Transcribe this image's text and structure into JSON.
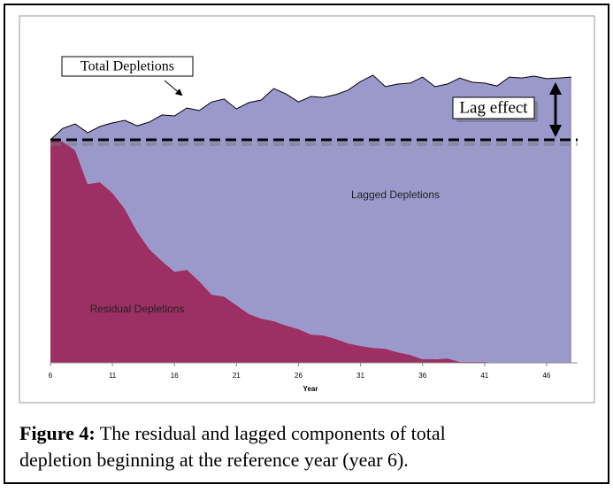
{
  "chart_data": {
    "type": "stacked_area",
    "x_label": "Year",
    "x": [
      6,
      7,
      8,
      9,
      10,
      11,
      12,
      13,
      14,
      15,
      16,
      17,
      18,
      19,
      20,
      21,
      22,
      23,
      24,
      25,
      26,
      27,
      28,
      29,
      30,
      31,
      32,
      33,
      34,
      35,
      36,
      37,
      38,
      39,
      40,
      41,
      42,
      43,
      44,
      45,
      46,
      47,
      48
    ],
    "series": [
      {
        "name": "Residual Depletions",
        "color": "#9c2f63",
        "values": [
          70,
          69.4,
          66.7,
          56.1,
          56.7,
          53.3,
          48.3,
          41.1,
          35.6,
          31.9,
          28.6,
          29.2,
          25.6,
          21.4,
          20.8,
          18.1,
          15.3,
          13.9,
          13.1,
          11.7,
          10.6,
          8.9,
          8.6,
          7.5,
          6.1,
          5.3,
          4.7,
          4.4,
          3.3,
          2.5,
          1.1,
          1.1,
          1.4,
          0.3,
          0.3,
          0.3,
          0,
          0,
          0,
          0,
          0,
          0,
          0
        ]
      },
      {
        "name": "Lagged Depletions",
        "color": "#9b99cc",
        "values": [
          0,
          4.2,
          8.3,
          16.1,
          17.5,
          22,
          27.8,
          33.3,
          40,
          45.9,
          48.9,
          50.8,
          53.6,
          60.5,
          62,
          61.6,
          66.4,
          68.6,
          73,
          72.7,
          71.3,
          74.7,
          74.7,
          76.7,
          79.5,
          83,
          85.6,
          82.3,
          84.2,
          85.3,
          88.6,
          85.6,
          86.1,
          89.1,
          87.8,
          87.5,
          86.9,
          89.7,
          89.4,
          90,
          89.2,
          89.4,
          89.7
        ]
      }
    ],
    "xlim": [
      6,
      48.5
    ],
    "xticks": [
      6,
      11,
      16,
      21,
      26,
      31,
      36,
      41,
      46
    ],
    "ylim": [
      0,
      100
    ],
    "reference_line": 70,
    "annotations": {
      "total": "Total Depletions",
      "lag": "Lag effect"
    }
  },
  "caption": {
    "label": "Figure 4:",
    "text": "The residual and lagged components of total depletion beginning at the reference year (year 6)."
  }
}
